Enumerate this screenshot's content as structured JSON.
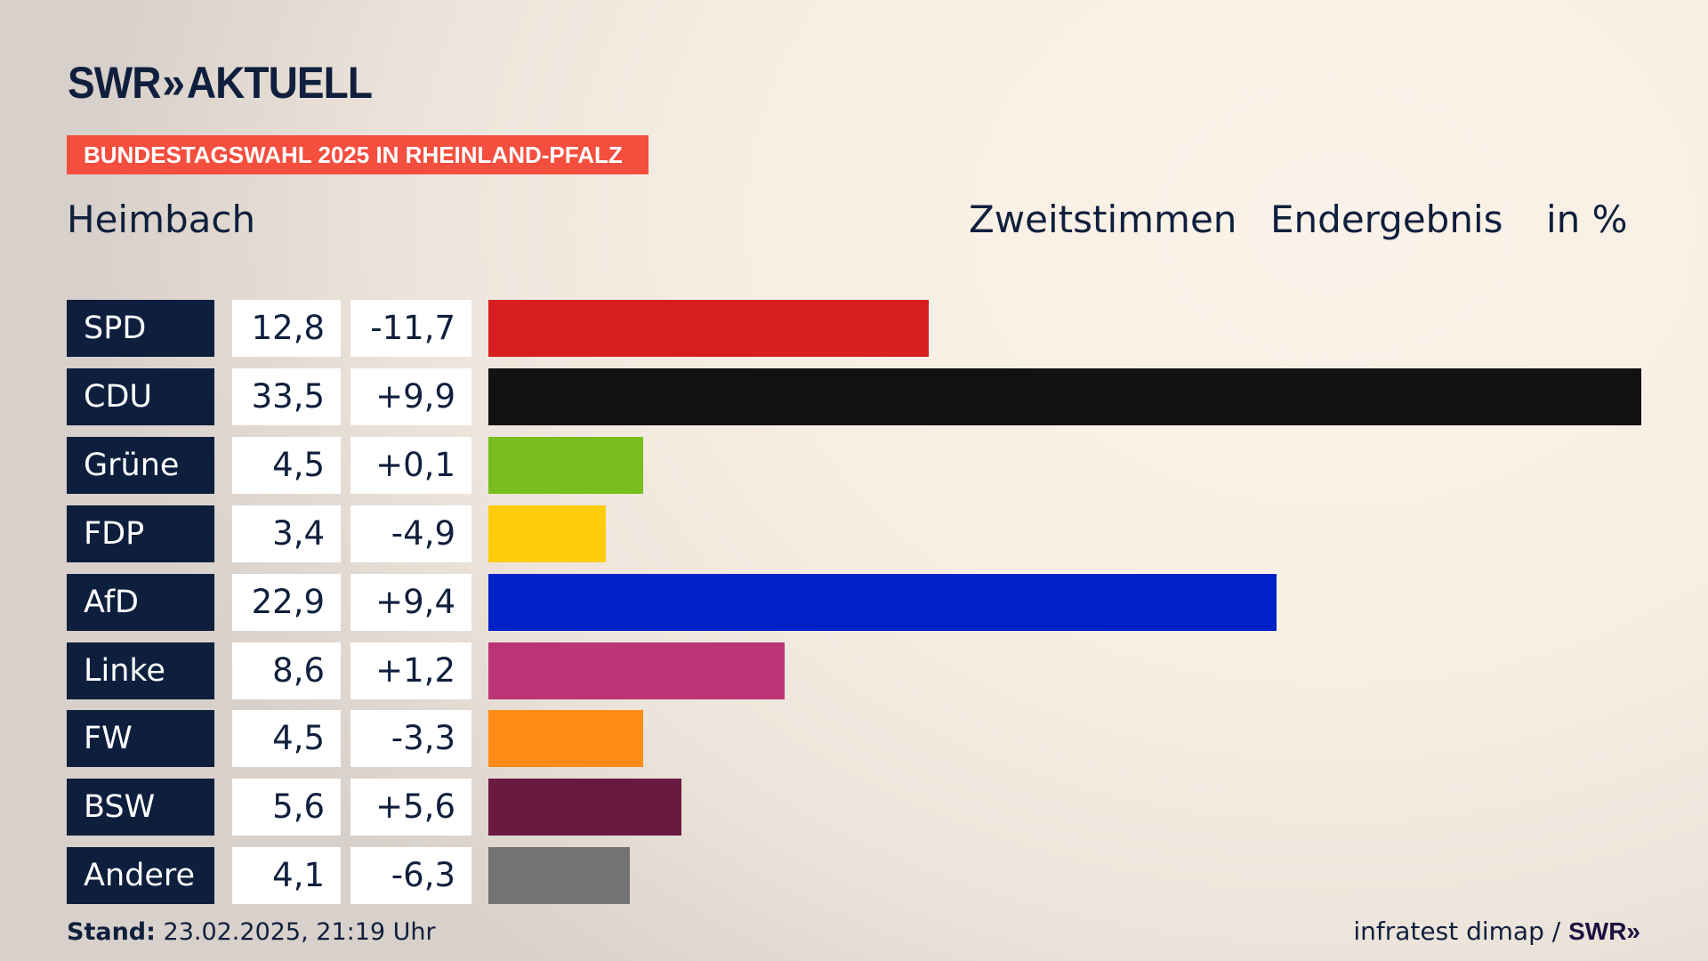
{
  "logo": {
    "brand": "SWR",
    "chevrons": "»",
    "label": "AKTUELL"
  },
  "banner": "BUNDESTAGSWAHL 2025 IN RHEINLAND-PFALZ",
  "place": "Heimbach",
  "header": {
    "vote_type": "Zweitstimmen",
    "result": "Endergebnis",
    "unit": "in %"
  },
  "chart_data": {
    "type": "bar",
    "title": "Heimbach – Zweitstimmen Endergebnis in %",
    "categories": [
      "SPD",
      "CDU",
      "Grüne",
      "FDP",
      "AfD",
      "Linke",
      "FW",
      "BSW",
      "Andere"
    ],
    "values": [
      12.8,
      33.5,
      4.5,
      3.4,
      22.9,
      8.6,
      4.5,
      5.6,
      4.1
    ],
    "value_labels": [
      "12,8",
      "33,5",
      "4,5",
      "3,4",
      "22,9",
      "8,6",
      "4,5",
      "5,6",
      "4,1"
    ],
    "changes": [
      -11.7,
      9.9,
      0.1,
      -4.9,
      9.4,
      1.2,
      -3.3,
      5.6,
      -6.3
    ],
    "change_labels": [
      "-11,7",
      "+9,9",
      "+0,1",
      "-4,9",
      "+9,4",
      "+1,2",
      "-3,3",
      "+5,6",
      "-6,3"
    ],
    "colors": [
      "#d71f1f",
      "#121212",
      "#78be1e",
      "#ffcc0a",
      "#0021c8",
      "#bc3475",
      "#ff8c17",
      "#6a1a40",
      "#737373"
    ],
    "xlim": [
      0,
      33.5
    ],
    "orientation": "horizontal"
  },
  "footer": {
    "stand_label": "Stand:",
    "stand_value": "23.02.2025, 21:19 Uhr",
    "source": "infratest dimap /",
    "source_logo": "SWR»"
  }
}
